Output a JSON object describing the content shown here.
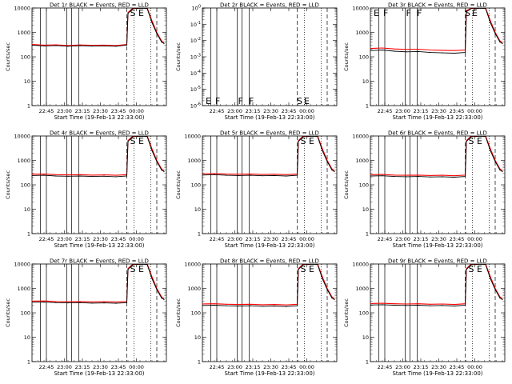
{
  "figure": {
    "xlabel": "Start Time (19-Feb-13 22:33:00)",
    "ylabel": "Counts/sec",
    "x_ticks": [
      "22:45",
      "23:00",
      "23:15",
      "23:30",
      "23:45",
      "00:00"
    ],
    "series_colors": {
      "events": "#000000",
      "lld": "#ff0000"
    }
  },
  "chart_data": [
    {
      "title": "Det 1r BLACK = Events, RED = LLD",
      "type": "line",
      "y_scale": "log",
      "ylim": [
        1,
        10000
      ],
      "y_ticks": [
        "1",
        "10",
        "100",
        "1000",
        "10000"
      ],
      "x_minutes": [
        0,
        10,
        20,
        30,
        40,
        50,
        60,
        70,
        79,
        80,
        84,
        88,
        92,
        96,
        100,
        104,
        108,
        110
      ],
      "events": [
        300,
        280,
        290,
        270,
        285,
        275,
        280,
        270,
        300,
        6000,
        9500,
        9500,
        9800,
        9500,
        2500,
        900,
        400,
        350
      ],
      "lld": [
        320,
        300,
        310,
        290,
        305,
        295,
        300,
        290,
        320,
        6500,
        10000,
        10000,
        10000,
        10000,
        3000,
        1000,
        450,
        380
      ],
      "markers": {
        "solid_min": [
          7,
          12,
          29,
          33,
          39
        ],
        "dashed_min": [
          79,
          104
        ],
        "dotted_min": [
          85,
          99
        ],
        "labels": [
          [
            "S",
            81
          ],
          [
            "E",
            88
          ]
        ]
      }
    },
    {
      "title": "Det 2r BLACK = Events, RED = LLD",
      "type": "line",
      "y_scale": "log",
      "ylim": [
        1e-06,
        1
      ],
      "y_ticks": [
        "10^-6",
        "10^-5",
        "10^-4",
        "10^-3",
        "10^-2",
        "10^-1",
        "10^0"
      ],
      "x_minutes": [],
      "events": [],
      "lld": [],
      "markers": {
        "solid_min": [
          7,
          12,
          29,
          33,
          39
        ],
        "dashed_min": [
          79,
          104
        ],
        "dotted_min": [
          85,
          99
        ],
        "labels": [
          [
            "E",
            2
          ],
          [
            "F",
            10
          ],
          [
            "F",
            29
          ],
          [
            "F",
            38
          ],
          [
            "S",
            78
          ],
          [
            "E",
            84
          ]
        ]
      }
    },
    {
      "title": "Det 3r BLACK = Events, RED = LLD",
      "type": "line",
      "y_scale": "log",
      "ylim": [
        1,
        10000
      ],
      "y_ticks": [
        "1",
        "10",
        "100",
        "1000",
        "10000"
      ],
      "x_minutes": [
        0,
        10,
        20,
        30,
        40,
        50,
        60,
        70,
        79,
        80,
        84,
        88,
        92,
        96,
        100,
        104,
        108,
        110
      ],
      "events": [
        180,
        190,
        170,
        160,
        165,
        150,
        145,
        140,
        150,
        7000,
        9500,
        9500,
        9800,
        9500,
        2500,
        900,
        400,
        350
      ],
      "lld": [
        220,
        230,
        210,
        200,
        205,
        190,
        185,
        180,
        190,
        7500,
        10000,
        10000,
        10000,
        10000,
        3000,
        1000,
        450,
        380
      ],
      "markers": {
        "solid_min": [
          7,
          12,
          29,
          33,
          39
        ],
        "dashed_min": [
          79,
          104
        ],
        "dotted_min": [
          85,
          99
        ],
        "labels": [
          [
            "E",
            2
          ],
          [
            "F",
            10
          ],
          [
            "F",
            29
          ],
          [
            "F",
            38
          ],
          [
            "S",
            78
          ],
          [
            "E",
            84
          ]
        ]
      }
    },
    {
      "title": "Det 4r BLACK = Events, RED = LLD",
      "type": "line",
      "y_scale": "log",
      "ylim": [
        1,
        10000
      ],
      "y_ticks": [
        "1",
        "10",
        "100",
        "1000",
        "10000"
      ],
      "x_minutes": [
        0,
        10,
        20,
        30,
        40,
        50,
        60,
        70,
        79,
        80,
        84,
        88,
        92,
        96,
        100,
        104,
        108,
        110
      ],
      "events": [
        240,
        245,
        230,
        225,
        230,
        220,
        225,
        215,
        230,
        6000,
        9500,
        9500,
        9800,
        9500,
        2500,
        900,
        400,
        350
      ],
      "lld": [
        270,
        275,
        260,
        255,
        260,
        250,
        255,
        245,
        260,
        6500,
        10000,
        10000,
        10000,
        10000,
        3000,
        1000,
        450,
        380
      ],
      "markers": {
        "solid_min": [
          7,
          12,
          29,
          33,
          39
        ],
        "dashed_min": [
          79,
          104
        ],
        "dotted_min": [
          85,
          99
        ],
        "labels": [
          [
            "S",
            81
          ],
          [
            "E",
            88
          ]
        ]
      }
    },
    {
      "title": "Det 5r BLACK = Events, RED = LLD",
      "type": "line",
      "y_scale": "log",
      "ylim": [
        1,
        10000
      ],
      "y_ticks": [
        "1",
        "10",
        "100",
        "1000",
        "10000"
      ],
      "x_minutes": [
        0,
        10,
        20,
        30,
        40,
        50,
        60,
        70,
        79,
        80,
        84,
        88,
        92,
        96,
        100,
        104,
        108,
        110
      ],
      "events": [
        250,
        260,
        245,
        240,
        245,
        235,
        240,
        230,
        245,
        6000,
        9500,
        9500,
        9800,
        9500,
        2500,
        900,
        400,
        350
      ],
      "lld": [
        280,
        290,
        275,
        270,
        275,
        265,
        270,
        260,
        275,
        6500,
        10000,
        10000,
        10000,
        10000,
        3000,
        1000,
        450,
        380
      ],
      "markers": {
        "solid_min": [
          7,
          12,
          29,
          33,
          39
        ],
        "dashed_min": [
          79,
          104
        ],
        "dotted_min": [
          85,
          99
        ],
        "labels": [
          [
            "S",
            81
          ],
          [
            "E",
            88
          ]
        ]
      }
    },
    {
      "title": "Det 6r BLACK = Events, RED = LLD",
      "type": "line",
      "y_scale": "log",
      "ylim": [
        1,
        10000
      ],
      "y_ticks": [
        "1",
        "10",
        "100",
        "1000",
        "10000"
      ],
      "x_minutes": [
        0,
        10,
        20,
        30,
        40,
        50,
        60,
        70,
        79,
        80,
        84,
        88,
        92,
        96,
        100,
        104,
        108,
        110
      ],
      "events": [
        230,
        235,
        220,
        215,
        220,
        210,
        215,
        205,
        220,
        6000,
        9500,
        9500,
        9800,
        9500,
        2500,
        900,
        400,
        350
      ],
      "lld": [
        260,
        265,
        250,
        245,
        250,
        240,
        245,
        235,
        250,
        6500,
        10000,
        10000,
        10000,
        10000,
        3000,
        1000,
        450,
        380
      ],
      "markers": {
        "solid_min": [
          7,
          12,
          29,
          33,
          39
        ],
        "dashed_min": [
          79,
          104
        ],
        "dotted_min": [
          85,
          99
        ],
        "labels": [
          [
            "S",
            81
          ],
          [
            "E",
            88
          ]
        ]
      }
    },
    {
      "title": "Det 7r BLACK = Events, RED = LLD",
      "type": "line",
      "y_scale": "log",
      "ylim": [
        1,
        10000
      ],
      "y_ticks": [
        "1",
        "10",
        "100",
        "1000",
        "10000"
      ],
      "x_minutes": [
        0,
        10,
        20,
        30,
        40,
        50,
        60,
        70,
        79,
        80,
        84,
        88,
        92,
        96,
        100,
        104,
        108,
        110
      ],
      "events": [
        270,
        275,
        260,
        255,
        260,
        250,
        255,
        245,
        260,
        6000,
        9500,
        9500,
        9800,
        9500,
        2500,
        900,
        400,
        350
      ],
      "lld": [
        300,
        305,
        290,
        285,
        290,
        280,
        285,
        275,
        290,
        6500,
        10000,
        10000,
        10000,
        10000,
        3000,
        1000,
        450,
        380
      ],
      "markers": {
        "solid_min": [
          7,
          12,
          29,
          33,
          39
        ],
        "dashed_min": [
          79,
          104
        ],
        "dotted_min": [
          85,
          99
        ],
        "labels": [
          [
            "S",
            81
          ],
          [
            "E",
            88
          ]
        ]
      }
    },
    {
      "title": "Det 8r BLACK = Events, RED = LLD",
      "type": "line",
      "y_scale": "log",
      "ylim": [
        1,
        10000
      ],
      "y_ticks": [
        "1",
        "10",
        "100",
        "1000",
        "10000"
      ],
      "x_minutes": [
        0,
        10,
        20,
        30,
        40,
        50,
        60,
        70,
        79,
        80,
        84,
        88,
        92,
        96,
        100,
        104,
        108,
        110
      ],
      "events": [
        200,
        205,
        195,
        190,
        195,
        185,
        190,
        180,
        195,
        6000,
        9500,
        9500,
        9800,
        9500,
        2500,
        900,
        400,
        350
      ],
      "lld": [
        230,
        235,
        225,
        220,
        225,
        215,
        220,
        210,
        225,
        6500,
        10000,
        10000,
        10000,
        10000,
        3000,
        1000,
        450,
        380
      ],
      "markers": {
        "solid_min": [
          7,
          12,
          29,
          33,
          39
        ],
        "dashed_min": [
          79,
          104
        ],
        "dotted_min": [
          85,
          99
        ],
        "labels": [
          [
            "S",
            81
          ],
          [
            "E",
            88
          ]
        ]
      }
    },
    {
      "title": "Det 9r BLACK = Events, RED = LLD",
      "type": "line",
      "y_scale": "log",
      "ylim": [
        1,
        10000
      ],
      "y_ticks": [
        "1",
        "10",
        "100",
        "1000",
        "10000"
      ],
      "x_minutes": [
        0,
        10,
        20,
        30,
        40,
        50,
        60,
        70,
        79,
        80,
        84,
        88,
        92,
        96,
        100,
        104,
        108,
        110
      ],
      "events": [
        210,
        215,
        205,
        200,
        205,
        195,
        200,
        190,
        205,
        6000,
        9500,
        9500,
        9800,
        9500,
        2500,
        900,
        400,
        350
      ],
      "lld": [
        240,
        245,
        235,
        230,
        235,
        225,
        230,
        220,
        235,
        6500,
        10000,
        10000,
        10000,
        10000,
        3000,
        1000,
        450,
        380
      ],
      "markers": {
        "solid_min": [
          7,
          12,
          29,
          33,
          39
        ],
        "dashed_min": [
          79,
          104
        ],
        "dotted_min": [
          85,
          99
        ],
        "labels": [
          [
            "S",
            81
          ],
          [
            "E",
            88
          ]
        ]
      }
    }
  ]
}
